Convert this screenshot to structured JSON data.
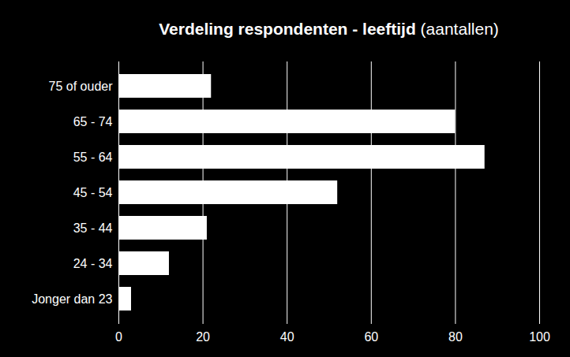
{
  "chart_data": {
    "type": "bar",
    "title": "Verdeling respondenten - leeftijd (aantallen)",
    "categories": [
      "75 of ouder",
      "65 - 74",
      "55 - 64",
      "45 - 54",
      "35 - 44",
      "24 - 34",
      "Jonger dan 23"
    ],
    "values": [
      22,
      80,
      87,
      52,
      21,
      12,
      3
    ],
    "color": "#ffffff",
    "orientation": "horizontal",
    "xlim": [
      0,
      100
    ],
    "xticks": [
      0,
      20,
      40,
      60,
      80,
      100
    ],
    "grid": true
  }
}
